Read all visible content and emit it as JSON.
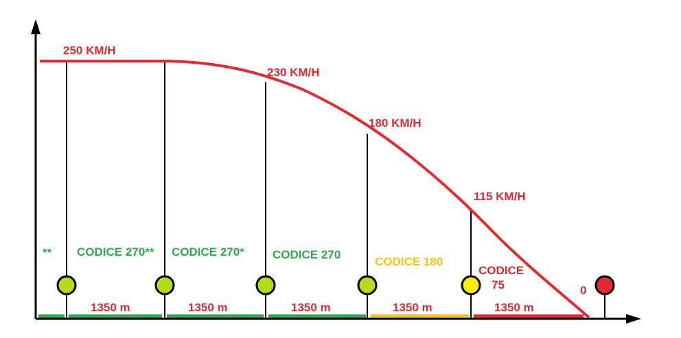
{
  "colors": {
    "curve": "#e32a32",
    "green": "#2fa84f",
    "yellow": "#f5c518",
    "red": "#e32a32",
    "signal_green": "#b5dc1c",
    "signal_yellow": "#ffee00",
    "signal_red": "#e32a32",
    "axis": "#000000"
  },
  "speeds": [
    "250 KM/H",
    "230 KM/H",
    "180 KM/H",
    "115 KM/H"
  ],
  "stop_label": "0",
  "codes": [
    {
      "text": "**",
      "color": "green"
    },
    {
      "text": "CODICE 270**",
      "color": "green"
    },
    {
      "text": "CODICE 270*",
      "color": "green"
    },
    {
      "text": "CODICE 270",
      "color": "green"
    },
    {
      "text": "CODICE 180",
      "color": "yellow"
    }
  ],
  "code_last": {
    "line1": "CODICE",
    "line2": "75",
    "color": "red"
  },
  "distances": [
    "1350 m",
    "1350 m",
    "1350 m",
    "1350 m",
    "1350 m"
  ],
  "signals": [
    {
      "aspect": "green"
    },
    {
      "aspect": "green"
    },
    {
      "aspect": "green"
    },
    {
      "aspect": "green"
    },
    {
      "aspect": "yellow"
    },
    {
      "aspect": "red"
    }
  ]
}
